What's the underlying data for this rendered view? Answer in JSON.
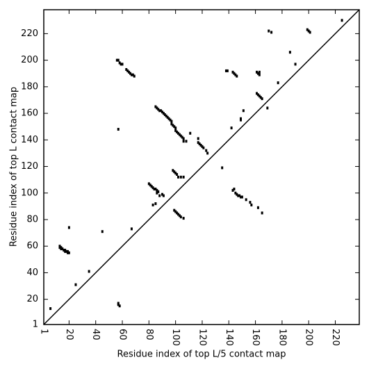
{
  "chart_data": {
    "type": "scatter",
    "x_label": "Residue index of top L/5 contact map",
    "y_label": "Residue index of top L contact map",
    "xlim": [
      1,
      238
    ],
    "ylim": [
      1,
      238
    ],
    "xticks": [
      1,
      20,
      40,
      60,
      80,
      100,
      120,
      140,
      160,
      180,
      200,
      220
    ],
    "yticks": [
      1,
      20,
      40,
      60,
      80,
      100,
      120,
      140,
      160,
      180,
      200,
      220
    ],
    "color": "#000000",
    "x": [
      6,
      13,
      13,
      14,
      14,
      15,
      16,
      17,
      17,
      18,
      19,
      19,
      20,
      20,
      25,
      35,
      45,
      67,
      57,
      57,
      58,
      57,
      56,
      57,
      58,
      59,
      60,
      63,
      64,
      65,
      66,
      67,
      68,
      69,
      80,
      81,
      82,
      83,
      84,
      85,
      86,
      87,
      86,
      88,
      90,
      91,
      85,
      83,
      99,
      100,
      101,
      102,
      103,
      104,
      106,
      98,
      99,
      100,
      101,
      102,
      104,
      106,
      85,
      86,
      87,
      88,
      89,
      90,
      91,
      92,
      93,
      94,
      95,
      96,
      97,
      97,
      98,
      99,
      100,
      100,
      101,
      102,
      103,
      104,
      105,
      106,
      106,
      108,
      111,
      117,
      117,
      118,
      119,
      120,
      121,
      123,
      124,
      135,
      138,
      139,
      143,
      144,
      145,
      146,
      142,
      149,
      149,
      151,
      161,
      162,
      163,
      163,
      161,
      162,
      163,
      164,
      165,
      169,
      170,
      172,
      177,
      186,
      190,
      199,
      200,
      201,
      225,
      143,
      144,
      145,
      146,
      147,
      148,
      149,
      150,
      153,
      156,
      157,
      162,
      165
    ],
    "values": [
      13,
      60,
      59,
      59,
      58,
      58,
      57,
      57,
      56,
      56,
      56,
      55,
      55,
      74,
      31,
      41,
      71,
      73,
      17,
      16,
      15,
      148,
      200,
      200,
      198,
      197,
      197,
      193,
      192,
      191,
      190,
      189,
      189,
      188,
      107,
      106,
      105,
      104,
      103,
      103,
      102,
      101,
      100,
      98,
      99,
      98,
      92,
      91,
      87,
      86,
      85,
      84,
      83,
      82,
      81,
      117,
      116,
      115,
      114,
      112,
      112,
      112,
      165,
      164,
      163,
      162,
      162,
      161,
      160,
      159,
      158,
      157,
      156,
      155,
      154,
      152,
      151,
      150,
      149,
      147,
      146,
      145,
      144,
      143,
      142,
      141,
      139,
      139,
      145,
      141,
      138,
      137,
      136,
      135,
      134,
      132,
      130,
      119,
      192,
      192,
      191,
      190,
      189,
      188,
      149,
      156,
      155,
      162,
      191,
      190,
      189,
      191,
      175,
      174,
      173,
      172,
      171,
      164,
      222,
      221,
      183,
      206,
      197,
      223,
      222,
      221,
      230,
      102,
      103,
      100,
      99,
      98,
      98,
      97,
      97,
      95,
      93,
      91,
      89,
      85
    ]
  }
}
